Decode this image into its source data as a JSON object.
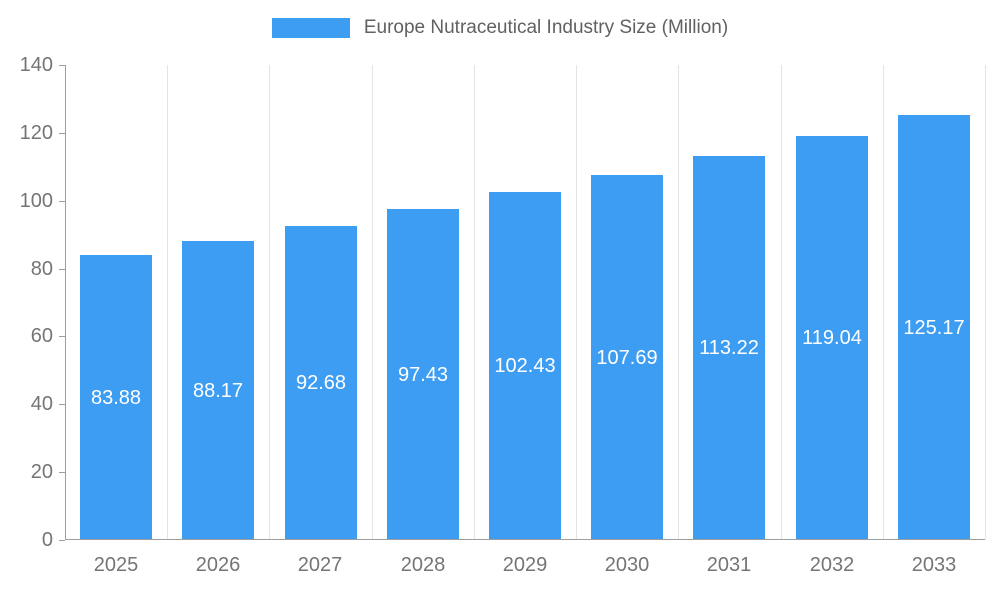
{
  "legend": {
    "label": "Europe Nutraceutical Industry Size (Million)",
    "swatch_color": "#3d9df3"
  },
  "chart_data": {
    "type": "bar",
    "title": "Europe Nutraceutical Industry Size (Million)",
    "categories": [
      "2025",
      "2026",
      "2027",
      "2028",
      "2029",
      "2030",
      "2031",
      "2032",
      "2033"
    ],
    "values": [
      83.88,
      88.17,
      92.68,
      97.43,
      102.43,
      107.69,
      113.22,
      119.04,
      125.17
    ],
    "xlabel": "",
    "ylabel": "",
    "ylim": [
      0,
      140
    ],
    "ytick_step": 20,
    "ytick_labels": [
      "0",
      "20",
      "40",
      "60",
      "80",
      "100",
      "120",
      "140"
    ],
    "bar_color": "#3d9df3",
    "value_label_color": "#ffffff",
    "axis_color": "#9e9e9e",
    "gridline_color": "#e4e4e4",
    "tick_label_color": "#757575",
    "grid": "vertical",
    "legend_position": "top"
  }
}
